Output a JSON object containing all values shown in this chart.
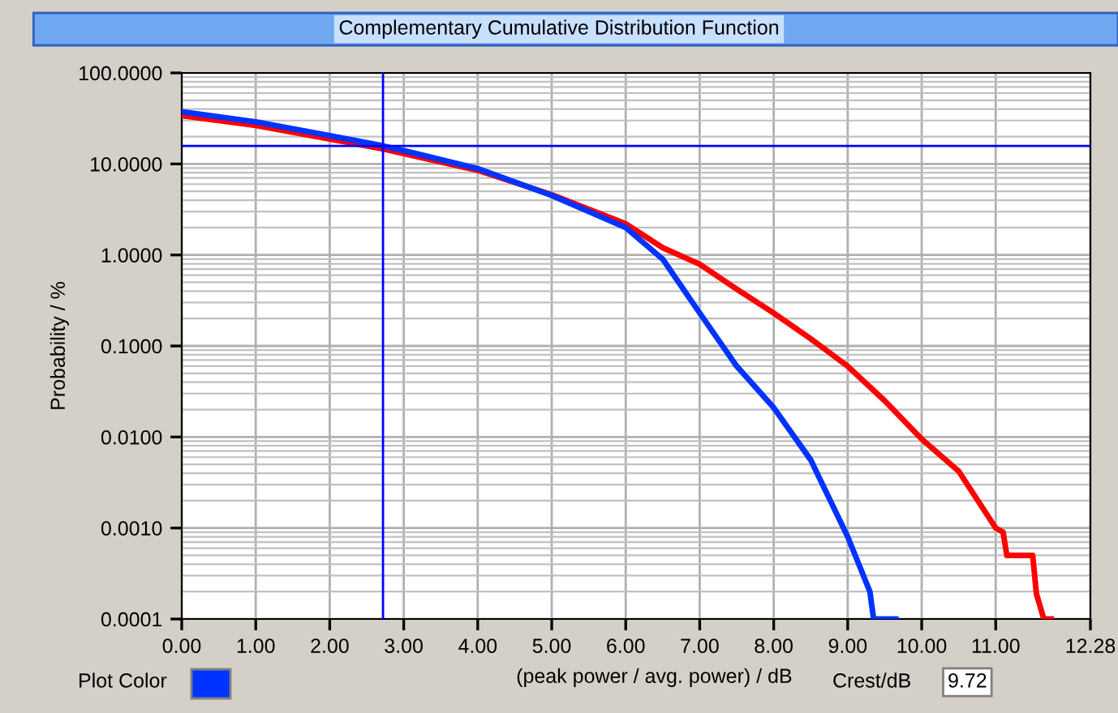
{
  "chart_data": {
    "type": "line",
    "title": "Complementary Cumulative Distribution Function",
    "xlabel": "(peak power / avg. power) / dB",
    "ylabel": "Probability / %",
    "log": "y",
    "grid": true,
    "legend": false,
    "xlim": [
      0,
      12.28
    ],
    "xticks": [
      {
        "value": 0,
        "label": "0.00"
      },
      {
        "value": 1,
        "label": "1.00"
      },
      {
        "value": 2,
        "label": "2.00"
      },
      {
        "value": 3,
        "label": "3.00"
      },
      {
        "value": 4,
        "label": "4.00"
      },
      {
        "value": 5,
        "label": "5.00"
      },
      {
        "value": 6,
        "label": "6.00"
      },
      {
        "value": 7,
        "label": "7.00"
      },
      {
        "value": 8,
        "label": "8.00"
      },
      {
        "value": 9,
        "label": "9.00"
      },
      {
        "value": 10,
        "label": "10.00"
      },
      {
        "value": 11,
        "label": "11.00"
      },
      {
        "value": 12.28,
        "label": "12.28"
      }
    ],
    "ylim": [
      0.0001,
      100
    ],
    "yticks": [
      {
        "value": 0.0001,
        "label": "0.0001"
      },
      {
        "value": 0.001,
        "label": "0.0010"
      },
      {
        "value": 0.01,
        "label": "0.0100"
      },
      {
        "value": 0.1,
        "label": "0.1000"
      },
      {
        "value": 1,
        "label": "1.0000"
      },
      {
        "value": 10,
        "label": "10.0000"
      },
      {
        "value": 100,
        "label": "100.0000"
      }
    ],
    "ref_lines": [
      {
        "axis": "x",
        "value": 2.72,
        "color": "#0000ff"
      },
      {
        "axis": "y",
        "value": 15.8,
        "color": "#0000ff"
      }
    ],
    "series": [
      {
        "color": "#ff0000",
        "x": [
          0,
          1,
          2,
          2.72,
          3,
          4,
          5,
          6,
          6.5,
          7,
          7.5,
          8,
          8.5,
          9,
          9.5,
          10,
          10.5,
          11,
          11.1,
          11.15,
          11.5,
          11.55,
          11.65,
          11.75
        ],
        "values": [
          34,
          26.5,
          18.8,
          14.6,
          13,
          8.5,
          4.6,
          2.2,
          1.2,
          0.79,
          0.42,
          0.23,
          0.12,
          0.06,
          0.025,
          0.0095,
          0.0042,
          0.001,
          0.0009,
          0.0005,
          0.0005,
          0.00019,
          0.0001,
          0.0001
        ]
      },
      {
        "color": "#0033ff",
        "x": [
          0,
          1,
          2,
          2.72,
          3,
          4,
          5,
          6,
          6.5,
          7,
          7.5,
          8,
          8.5,
          9,
          9.3,
          9.35,
          9.65
        ],
        "values": [
          37.4,
          29,
          20.5,
          15.8,
          14,
          8.9,
          4.5,
          2.0,
          0.9,
          0.23,
          0.06,
          0.021,
          0.0056,
          0.0008,
          0.0002,
          0.0001,
          0.0001
        ]
      }
    ],
    "annotations": [
      "Plot Color",
      "Crest/dB",
      "9.72"
    ]
  }
}
